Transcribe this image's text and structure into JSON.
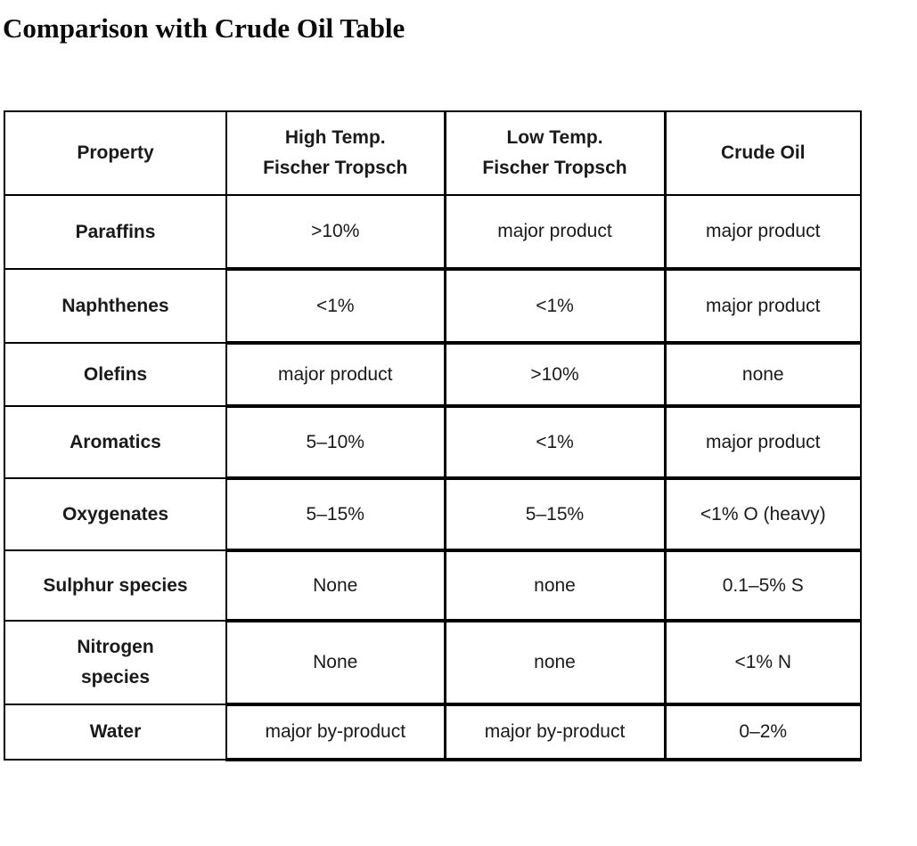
{
  "page": {
    "title": "Comparison with Crude Oil Table"
  },
  "table": {
    "headers": {
      "property": "Property",
      "htft": "High Temp.\nFischer Tropsch",
      "ltft": "Low Temp.\nFischer Tropsch",
      "crude": "Crude Oil"
    },
    "rows": [
      {
        "property": "Paraffins",
        "values": [
          ">10%",
          "major product",
          "major product"
        ]
      },
      {
        "property": "Naphthenes",
        "values": [
          "<1%",
          "<1%",
          "major product"
        ]
      },
      {
        "property": "Olefins",
        "values": [
          "major product",
          ">10%",
          "none"
        ]
      },
      {
        "property": "Aromatics",
        "values": [
          "5–10%",
          "<1%",
          "major product"
        ]
      },
      {
        "property": "Oxygenates",
        "values": [
          "5–15%",
          "5–15%",
          "<1% O (heavy)"
        ]
      },
      {
        "property": "Sulphur species",
        "values": [
          "None",
          "none",
          "0.1–5% S"
        ]
      },
      {
        "property": "Nitrogen\nspecies",
        "values": [
          "None",
          "none",
          "<1% N"
        ]
      },
      {
        "property": "Water",
        "values": [
          "major by-product",
          "major by-product",
          "0–2%"
        ]
      }
    ],
    "colors": {
      "border": "#000000",
      "text": "#1a1a1a",
      "background": "#ffffff"
    }
  }
}
